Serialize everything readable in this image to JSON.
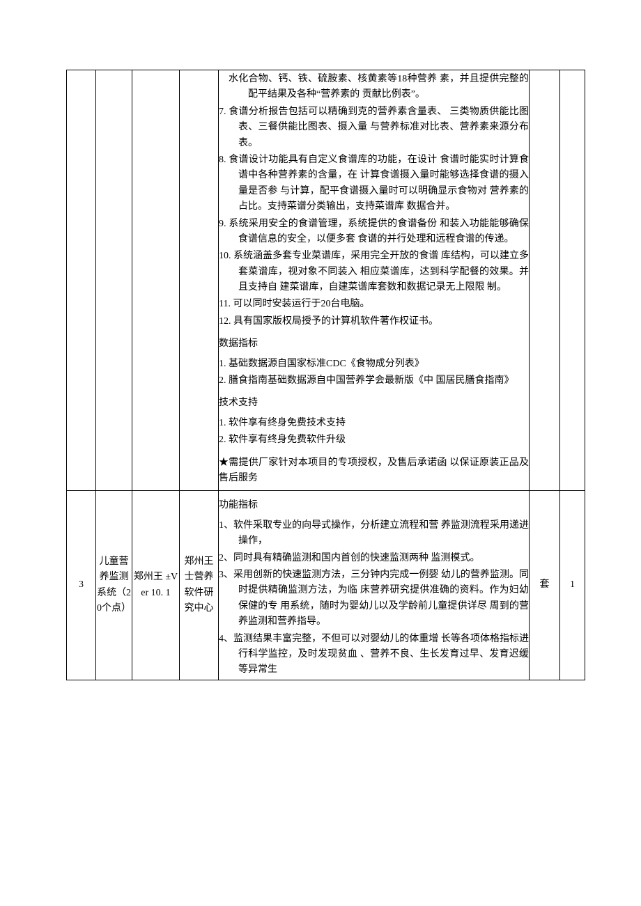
{
  "table": {
    "row1": {
      "spec_lines": [
        {
          "cls": "indent",
          "t": "水化合物、钙、铁、硫胺素、核黄素等18种营养 素，并且提供完整的配平结果及各种“营养素的 贡献比例表”。"
        },
        {
          "cls": "indent-num",
          "t": "7. 食谱分析报告包括可以精确到克的营养素含量表、 三类物质供能比图表、三餐供能比图表、摄入量 与营养标准对比表、营养素来源分布表。"
        },
        {
          "cls": "indent-num",
          "t": "8. 食谱设计功能具有自定义食谱库的功能，在设计 食谱时能实时计算食谱中各种营养素的含量，在 计算食谱摄入量时能够选择食谱的摄入量是否参 与计算，配平食谱摄入量时可以明确显示食物对 营养素的占比。支持菜谱分类输出，支持菜谱库 数据合并。"
        },
        {
          "cls": "indent-num",
          "t": "9. 系统采用安全的食谱管理，系统提供的食谱备份 和装入功能能够确保食谱信息的安全，以便多套 食谱的并行处理和远程食谱的传递。"
        },
        {
          "cls": "indent-num",
          "t": "10. 系统涵盖多套专业菜谱库，采用完全开放的食谱 库结构，可以建立多套菜谱库，视对象不同装入 相应菜谱库，达到科学配餐的效果。并且支持自 建菜谱库，自建菜谱库套数和数据记录无上限限 制。"
        },
        {
          "cls": "indent-num",
          "t": "11. 可以同时安装运行于20台电脑。"
        },
        {
          "cls": "indent-num",
          "t": "12. 具有国家版权局授予的计算机软件著作权证书。"
        },
        {
          "cls": "heading",
          "t": "数据指标"
        },
        {
          "cls": "indent-num",
          "t": "1. 基础数据源自国家标准CDC《食物成分列表》"
        },
        {
          "cls": "indent-num",
          "t": "2. 膳食指南基础数据源自中国营养学会最新版《中 国居民膳食指南》"
        },
        {
          "cls": "heading",
          "t": "技术支持"
        },
        {
          "cls": "indent-num",
          "t": "1. 软件享有终身免费技术支持"
        },
        {
          "cls": "indent-num",
          "t": "2. 软件享有终身免费软件升级"
        },
        {
          "cls": "heading",
          "t": "★需提供厂家针对本项目的专项授权，及售后承诺函 以保证原装正品及售后服务"
        }
      ]
    },
    "row2": {
      "idx": "3",
      "name": "儿童营养监测系统（20个点）",
      "model": "郑州王 ±Ver 10. 1",
      "mfr": "郑州王士营养软件研究中心",
      "unit": "套",
      "qty": "1",
      "spec_lines": [
        {
          "cls": "heading",
          "t": "功能指标"
        },
        {
          "cls": "indent-num",
          "t": "1、软件采取专业的向导式操作，分析建立流程和营 养监测流程采用递进操作，"
        },
        {
          "cls": "indent-num",
          "t": "2、同时具有精确监测和国内首创的快速监测两种 监测模式。"
        },
        {
          "cls": "indent-num",
          "t": "3、采用创新的快速监测方法，三分钟内完成一例婴 幼儿的营养监测。同时提供精确监测方法，为临 床营养研究提供准确的资料。作为妇幼保健的专 用系统，随时为婴幼儿以及学龄前儿童提供详尽 周到的营养监测和营养指导。"
        },
        {
          "cls": "indent-num",
          "t": "4、监测结果丰富完整，不但可以对婴幼儿的体重增 长等各项体格指标进行科学监控，及时发现贫血 、营养不良、生长发育过早、发育迟缓等异常生"
        }
      ]
    }
  }
}
